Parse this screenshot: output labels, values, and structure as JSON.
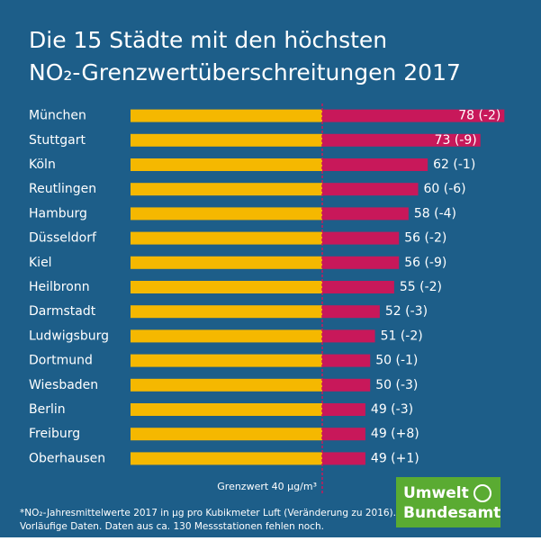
{
  "chart_data": {
    "type": "bar",
    "title": [
      "Die 15 Städte mit den höchsten",
      "NO₂-Grenzwertüberschreitungen 2017"
    ],
    "categories": [
      "München",
      "Stuttgart",
      "Köln",
      "Reutlingen",
      "Hamburg",
      "Düsseldorf",
      "Kiel",
      "Heilbronn",
      "Darmstadt",
      "Ludwigsburg",
      "Dortmund",
      "Wiesbaden",
      "Berlin",
      "Freiburg",
      "Oberhausen"
    ],
    "values": [
      78,
      73,
      62,
      60,
      58,
      56,
      56,
      55,
      52,
      51,
      50,
      50,
      49,
      49,
      49
    ],
    "value_labels": [
      "78 (-2)",
      "73 (-9)",
      "62 (-1)",
      "60 (-6)",
      "58 (-4)",
      "56 (-2)",
      "56 (-9)",
      "55 (-2)",
      "52 (-3)",
      "51 (-2)",
      "50 (-1)",
      "50 (-3)",
      "49 (-3)",
      "49 (+8)",
      "49 (+1)"
    ],
    "color": "#c8185a",
    "threshold_color": "#f5b800",
    "threshold": {
      "value": 40,
      "label": "Grenzwert 40 µg/m³"
    },
    "xlim": [
      0,
      80
    ],
    "footnote": [
      "*NO₂-Jahresmittelwerte 2017 in µg pro Kubikmeter Luft (Veränderung zu 2016).",
      "Vorläufige Daten. Daten aus ca. 130 Messstationen fehlen noch."
    ],
    "logo": [
      "Umwelt",
      "Bundesamt"
    ]
  }
}
